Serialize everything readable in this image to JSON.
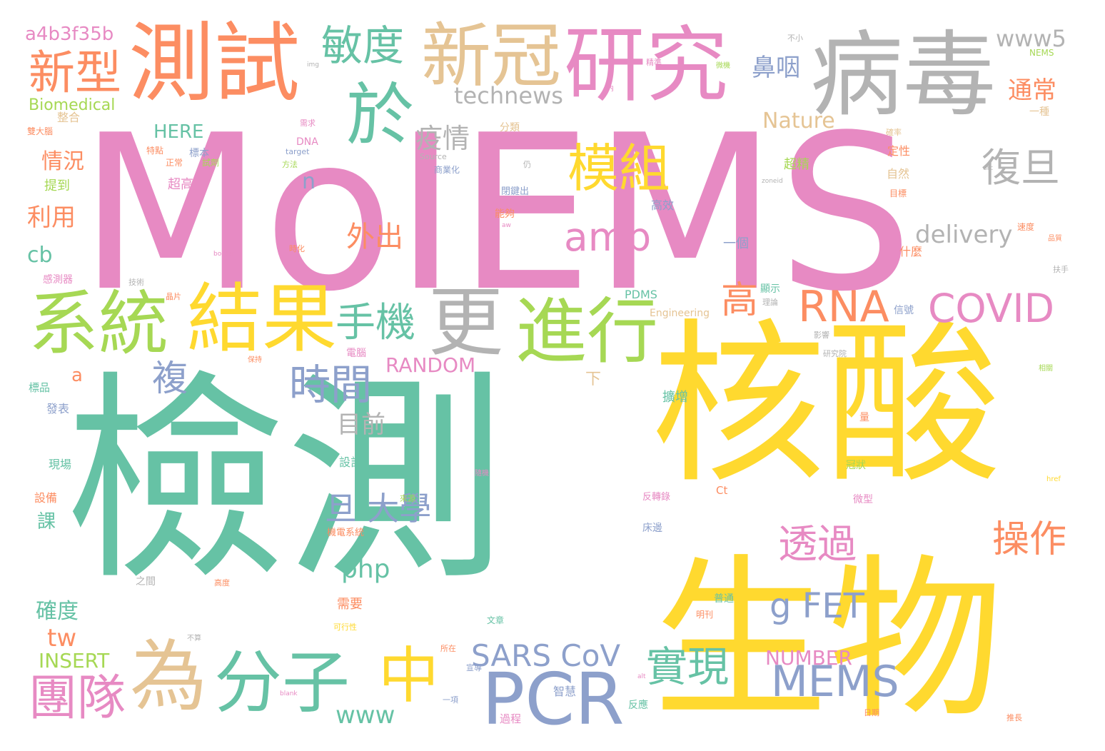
{
  "palette": {
    "teal": "#66c2a5",
    "orange": "#fc8d62",
    "blue": "#8da0cb",
    "pink": "#e78ac3",
    "green": "#a6d854",
    "yellow": "#ffd92f",
    "tan": "#e5c494",
    "gray": "#b3b3b3"
  },
  "words": [
    "MoIEMS",
    "檢測",
    "核酸",
    "生物",
    "病毒",
    "測試",
    "研究",
    "新冠",
    "於",
    "模組",
    "系統",
    "結果",
    "更",
    "進行",
    "PCR",
    "分子",
    "為",
    "中",
    "團隊",
    "新型",
    "敏度",
    "amp",
    "RNA",
    "COVID",
    "復旦",
    "時間",
    "手機",
    "複",
    "MEMS",
    "實現",
    "SARS CoV",
    "g FET",
    "操作",
    "透過",
    "旦 大學",
    "www",
    "php",
    "delivery",
    "technews",
    "www5",
    "a4b3f35b",
    "Biomedical",
    "HERE",
    "Nature",
    "疫情",
    "鼻咽",
    "通常",
    "高",
    "外出",
    "目前",
    "情況",
    "利用",
    "cb",
    "tw",
    "INSERT",
    "確度",
    "n",
    "a",
    "RANDOM",
    "NUMBER",
    "PDMS",
    "Engineering",
    "NEMS",
    "提到",
    "整合",
    "雙大腦",
    "特點",
    "標本",
    "正常",
    "試劑",
    "超高",
    "DNA",
    "target",
    "方法",
    "Source",
    "商業化",
    "閉鍵出",
    "高效",
    "超精",
    "一種",
    "定性",
    "自然",
    "目標",
    "確率",
    "速度",
    "一個",
    "什麼",
    "信號",
    "擴增",
    "量",
    "設計",
    "下",
    "冠狀",
    "床邊",
    "反轉錄",
    "微型",
    "發表",
    "標品",
    "設備",
    "課",
    "現場",
    "感測器",
    "技術",
    "晶片",
    "之間",
    "高度",
    "需要",
    "可行性",
    "文章",
    "機電系統",
    "過程",
    "智慧",
    "反應",
    "日期",
    "推長",
    "Ct",
    "href",
    "src",
    "zoneid",
    "img",
    "border",
    "blank",
    "alt",
    "aw",
    "不小",
    "內",
    "精準",
    "微機",
    "保持",
    "理論",
    "電腦",
    "能夠",
    "時化",
    "仍",
    "分類",
    "需求",
    "不算",
    "一項",
    "所在",
    "宣導",
    "明刊",
    "普通",
    "隨機",
    "來源",
    "扶手",
    "影響",
    "顯示",
    "研究院",
    "相關",
    "品質"
  ]
}
